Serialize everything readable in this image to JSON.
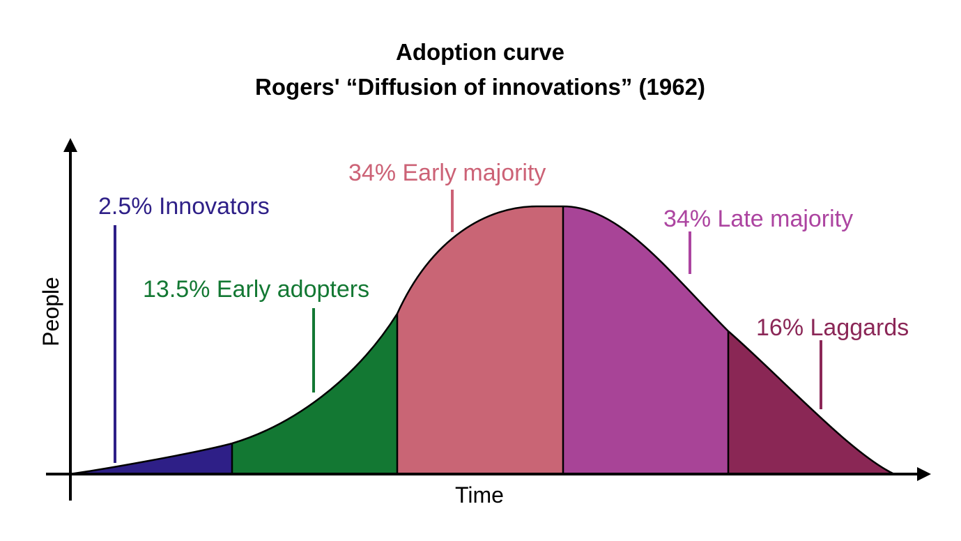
{
  "title": {
    "line1": "Adoption curve",
    "line2": "Rogers' “Diffusion of innovations” (1962)"
  },
  "axes": {
    "x_label": "Time",
    "y_label": "People"
  },
  "segments": [
    {
      "id": "innovators",
      "label": "2.5% Innovators",
      "percent": 2.5,
      "color": "#2e1f87",
      "label_color": "#2e1f87"
    },
    {
      "id": "early-adopters",
      "label": "13.5% Early adopters",
      "percent": 13.5,
      "color": "#137833",
      "label_color": "#137833"
    },
    {
      "id": "early-majority",
      "label": "34% Early majority",
      "percent": 34,
      "color": "#c96575",
      "label_color": "#cc6276"
    },
    {
      "id": "late-majority",
      "label": "34% Late majority",
      "percent": 34,
      "color": "#a84497",
      "label_color": "#ac44a0"
    },
    {
      "id": "laggards",
      "label": "16% Laggards",
      "percent": 16,
      "color": "#8a2755",
      "label_color": "#8b2757"
    }
  ]
}
